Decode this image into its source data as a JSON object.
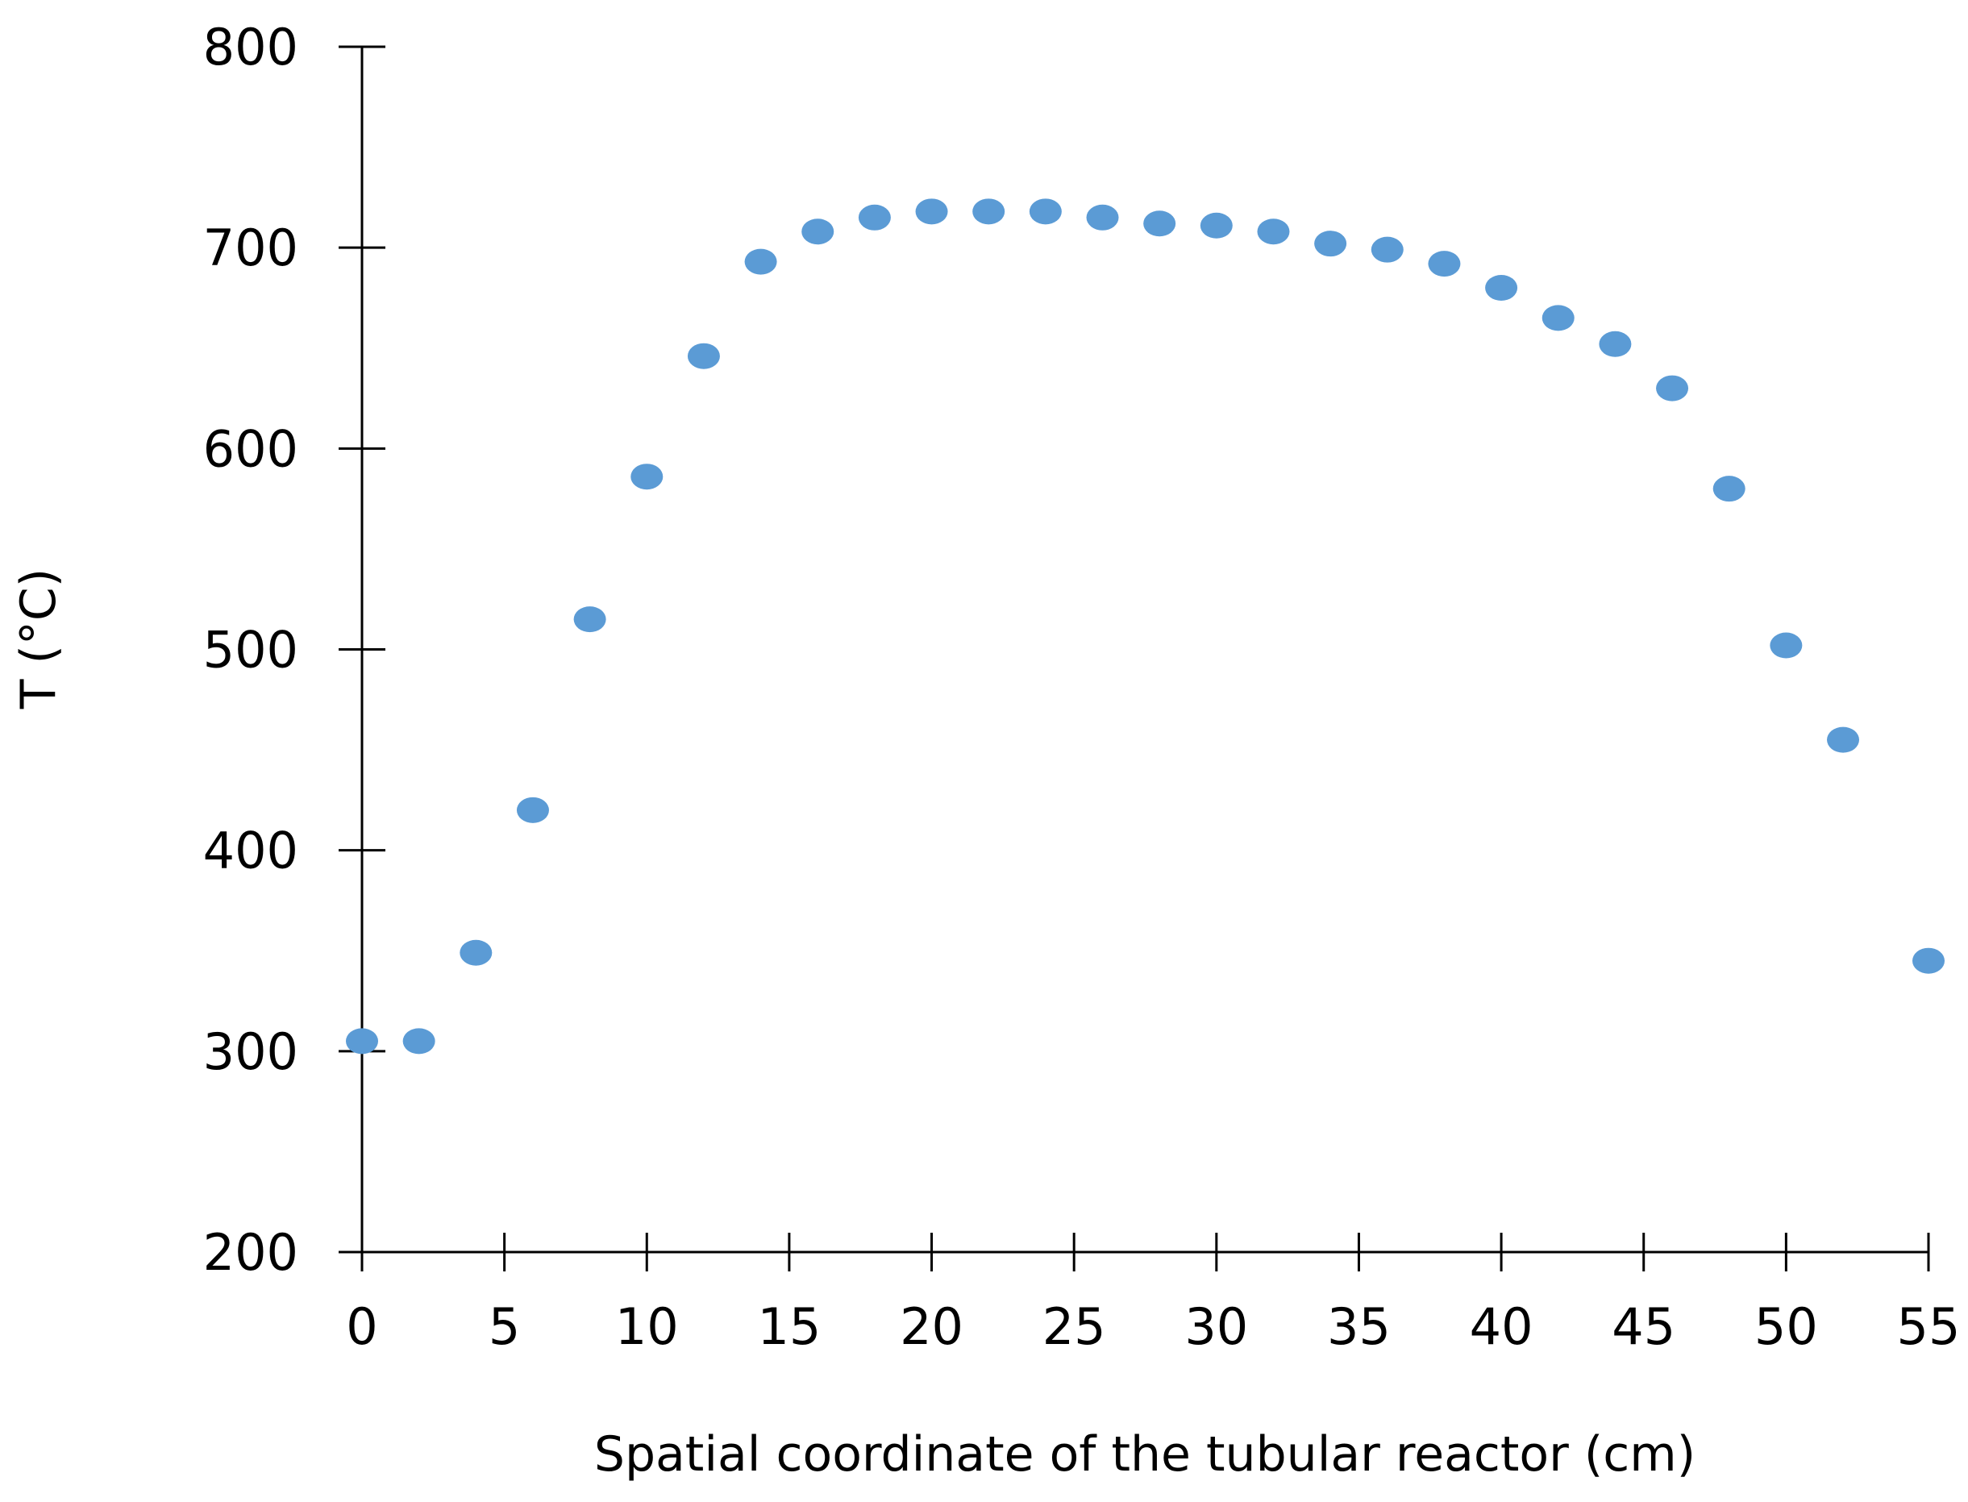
{
  "chart_data": {
    "type": "scatter",
    "title": "",
    "xlabel": "Spatial coordinate of the tubular reactor (cm)",
    "ylabel": "T (°C)",
    "xlim": [
      0,
      55
    ],
    "ylim": [
      200,
      800
    ],
    "xticks": [
      0,
      5,
      10,
      15,
      20,
      25,
      30,
      35,
      40,
      45,
      50,
      55
    ],
    "yticks": [
      200,
      300,
      400,
      500,
      600,
      700,
      800
    ],
    "grid": false,
    "legend": "none",
    "marker_color": "#5B9BD5",
    "series": [
      {
        "x": [
          0,
          2,
          4,
          6,
          8,
          10,
          12,
          14,
          16,
          18,
          20,
          22,
          24,
          26,
          28,
          30,
          32,
          34,
          36,
          38,
          40,
          42,
          44,
          46,
          48,
          50,
          52,
          55
        ],
        "y": [
          305,
          305,
          349,
          420,
          515,
          586,
          646,
          693,
          708,
          715,
          718,
          718,
          718,
          715,
          712,
          711,
          708,
          702,
          699,
          692,
          680,
          665,
          652,
          630,
          580,
          502,
          455,
          345
        ]
      }
    ]
  }
}
